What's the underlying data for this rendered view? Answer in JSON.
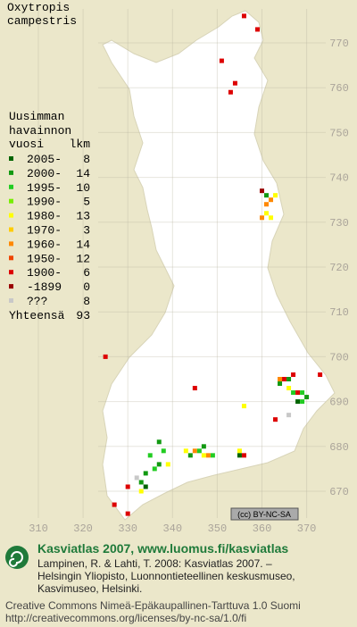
{
  "title_lines": [
    "Oxytropis",
    "campestris"
  ],
  "legend": {
    "heading_lines": [
      "Uusimman",
      "havainnon",
      "vuosi"
    ],
    "count_header": "lkm",
    "entries": [
      {
        "label": "2005-",
        "count": 8,
        "color": "#006400"
      },
      {
        "label": "2000-",
        "count": 14,
        "color": "#119911"
      },
      {
        "label": "1995-",
        "count": 10,
        "color": "#22cc22"
      },
      {
        "label": "1990-",
        "count": 5,
        "color": "#77ee00"
      },
      {
        "label": "1980-",
        "count": 13,
        "color": "#ffff00"
      },
      {
        "label": "1970-",
        "count": 3,
        "color": "#ffcc00"
      },
      {
        "label": "1960-",
        "count": 14,
        "color": "#ff8800"
      },
      {
        "label": "1950-",
        "count": 12,
        "color": "#ee4400"
      },
      {
        "label": "1900-",
        "count": 6,
        "color": "#dd0000"
      },
      {
        "label": "-1899",
        "count": 0,
        "color": "#990000"
      },
      {
        "label": "???",
        "count": 8,
        "color": "#c8c8c8"
      }
    ],
    "total": {
      "label": "Yhteensä",
      "count": 93
    }
  },
  "map": {
    "xticks": [
      310,
      320,
      330,
      340,
      350,
      360,
      370
    ],
    "yticks": [
      670,
      680,
      690,
      700,
      710,
      720,
      730,
      740,
      750,
      760,
      770
    ],
    "observations": [
      [
        356,
        776,
        8
      ],
      [
        359,
        773,
        8
      ],
      [
        351,
        766,
        8
      ],
      [
        354,
        761,
        8
      ],
      [
        353,
        759,
        8
      ],
      [
        360,
        737,
        9
      ],
      [
        361,
        736,
        1
      ],
      [
        362,
        735,
        6
      ],
      [
        363,
        736,
        4
      ],
      [
        361,
        734,
        6
      ],
      [
        361,
        732,
        4
      ],
      [
        360,
        731,
        6
      ],
      [
        362,
        731,
        4
      ],
      [
        325,
        700,
        8
      ],
      [
        345,
        693,
        8
      ],
      [
        356,
        689,
        4
      ],
      [
        364,
        695,
        6
      ],
      [
        365,
        695,
        8
      ],
      [
        366,
        695,
        1
      ],
      [
        367,
        696,
        8
      ],
      [
        364,
        694,
        1
      ],
      [
        366,
        693,
        4
      ],
      [
        367,
        692,
        2
      ],
      [
        368,
        692,
        8
      ],
      [
        369,
        692,
        2
      ],
      [
        370,
        691,
        1
      ],
      [
        368,
        690,
        0
      ],
      [
        369,
        690,
        2
      ],
      [
        373,
        696,
        8
      ],
      [
        363,
        686,
        8
      ],
      [
        366,
        687,
        10
      ],
      [
        337,
        681,
        1
      ],
      [
        335,
        678,
        2
      ],
      [
        338,
        679,
        2
      ],
      [
        337,
        676,
        1
      ],
      [
        339,
        676,
        4
      ],
      [
        336,
        675,
        2
      ],
      [
        334,
        674,
        1
      ],
      [
        332,
        673,
        10
      ],
      [
        333,
        672,
        1
      ],
      [
        334,
        671,
        0
      ],
      [
        330,
        671,
        8
      ],
      [
        333,
        670,
        4
      ],
      [
        327,
        667,
        8
      ],
      [
        330,
        665,
        8
      ],
      [
        343,
        679,
        4
      ],
      [
        344,
        678,
        1
      ],
      [
        345,
        679,
        6
      ],
      [
        346,
        679,
        2
      ],
      [
        347,
        680,
        1
      ],
      [
        347,
        678,
        4
      ],
      [
        349,
        678,
        2
      ],
      [
        348,
        678,
        6
      ],
      [
        355,
        679,
        4
      ],
      [
        355,
        678,
        0
      ],
      [
        356,
        678,
        8
      ]
    ]
  },
  "license_badge": "(cc) BY-NC-SA",
  "footer": {
    "site": "Kasviatlas 2007, www.luomus.fi/kasviatlas",
    "citation_lines": [
      "Lampinen, R. & Lahti, T. 2008: Kasviatlas 2007. –",
      "Helsingin Yliopisto, Luonnontieteellinen keskusmuseo,",
      "Kasvimuseo, Helsinki."
    ],
    "license_lines": [
      "Creative Commons Nimeä-Epäkaupallinen-Tarttuva 1.0 Suomi",
      "http://creativecommons.org/licenses/by-nc-sa/1.0/fi"
    ]
  }
}
